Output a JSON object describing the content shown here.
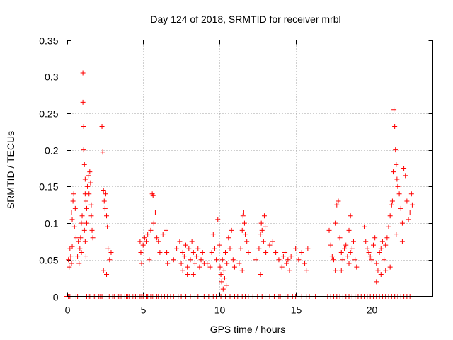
{
  "chart_data": {
    "type": "scatter",
    "title": "Day 124 of 2018, SRMTID for receiver mrbl",
    "xlabel": "GPS time / hours",
    "ylabel": "SRMTID / TECUs",
    "xlim": [
      0,
      24
    ],
    "ylim": [
      0,
      0.35
    ],
    "x_ticks": [
      "0",
      "5",
      "10",
      "15",
      "20"
    ],
    "x_tick_values": [
      0,
      5,
      10,
      15,
      20
    ],
    "y_ticks": [
      "0",
      "0.05",
      "0.1",
      "0.15",
      "0.2",
      "0.25",
      "0.3",
      "0.35"
    ],
    "y_tick_values": [
      0,
      0.05,
      0.1,
      0.15,
      0.2,
      0.25,
      0.3,
      0.35
    ],
    "grid": true,
    "marker": "+",
    "color": "#ff0000",
    "series": [
      {
        "name": "SRMTID",
        "points": [
          [
            0.1,
            0.05
          ],
          [
            0.15,
            0.04
          ],
          [
            0.2,
            0.065
          ],
          [
            0.25,
            0.055
          ],
          [
            0.3,
            0.045
          ],
          [
            0.35,
            0.068
          ],
          [
            0.3,
            0.115
          ],
          [
            0.35,
            0.105
          ],
          [
            0.4,
            0.13
          ],
          [
            0.45,
            0.14
          ],
          [
            0.5,
            0.095
          ],
          [
            0.55,
            0.12
          ],
          [
            0.6,
            0.08
          ],
          [
            0.7,
            0.055
          ],
          [
            0.75,
            0.075
          ],
          [
            0.8,
            0.045
          ],
          [
            0.85,
            0.065
          ],
          [
            0.9,
            0.08
          ],
          [
            0.95,
            0.1
          ],
          [
            1.0,
            0.11
          ],
          [
            1.05,
            0.305
          ],
          [
            1.05,
            0.265
          ],
          [
            1.1,
            0.232
          ],
          [
            1.1,
            0.2
          ],
          [
            1.15,
            0.18
          ],
          [
            1.2,
            0.16
          ],
          [
            1.2,
            0.14
          ],
          [
            1.25,
            0.13
          ],
          [
            1.3,
            0.12
          ],
          [
            1.3,
            0.1
          ],
          [
            1.35,
            0.15
          ],
          [
            1.4,
            0.165
          ],
          [
            1.45,
            0.14
          ],
          [
            1.5,
            0.17
          ],
          [
            1.55,
            0.155
          ],
          [
            1.6,
            0.125
          ],
          [
            1.6,
            0.11
          ],
          [
            1.65,
            0.09
          ],
          [
            1.7,
            0.08
          ],
          [
            1.15,
            0.09
          ],
          [
            1.2,
            0.075
          ],
          [
            1.25,
            0.055
          ],
          [
            0.95,
            0.06
          ],
          [
            2.3,
            0.232
          ],
          [
            2.35,
            0.197
          ],
          [
            2.4,
            0.145
          ],
          [
            2.45,
            0.13
          ],
          [
            2.5,
            0.12
          ],
          [
            2.55,
            0.14
          ],
          [
            2.6,
            0.11
          ],
          [
            2.65,
            0.095
          ],
          [
            2.4,
            0.035
          ],
          [
            2.6,
            0.03
          ],
          [
            2.8,
            0.05
          ],
          [
            2.9,
            0.06
          ],
          [
            2.7,
            0.065
          ],
          [
            4.8,
            0.075
          ],
          [
            4.85,
            0.06
          ],
          [
            4.9,
            0.045
          ],
          [
            5.0,
            0.07
          ],
          [
            5.1,
            0.08
          ],
          [
            5.2,
            0.075
          ],
          [
            5.3,
            0.085
          ],
          [
            5.4,
            0.05
          ],
          [
            5.5,
            0.09
          ],
          [
            5.6,
            0.14
          ],
          [
            5.65,
            0.138
          ],
          [
            5.7,
            0.1
          ],
          [
            5.8,
            0.115
          ],
          [
            5.9,
            0.08
          ],
          [
            6.0,
            0.075
          ],
          [
            6.1,
            0.06
          ],
          [
            6.3,
            0.085
          ],
          [
            6.5,
            0.09
          ],
          [
            6.55,
            0.06
          ],
          [
            6.6,
            0.045
          ],
          [
            7.0,
            0.05
          ],
          [
            7.2,
            0.065
          ],
          [
            7.4,
            0.075
          ],
          [
            7.5,
            0.045
          ],
          [
            7.6,
            0.06
          ],
          [
            7.7,
            0.055
          ],
          [
            7.8,
            0.07
          ],
          [
            7.9,
            0.04
          ],
          [
            8.0,
            0.065
          ],
          [
            8.1,
            0.05
          ],
          [
            8.2,
            0.075
          ],
          [
            8.3,
            0.06
          ],
          [
            8.4,
            0.045
          ],
          [
            8.5,
            0.055
          ],
          [
            8.6,
            0.065
          ],
          [
            8.7,
            0.04
          ],
          [
            8.8,
            0.05
          ],
          [
            8.9,
            0.06
          ],
          [
            9.0,
            0.045
          ],
          [
            7.6,
            0.035
          ],
          [
            7.9,
            0.03
          ],
          [
            8.3,
            0.03
          ],
          [
            9.2,
            0.045
          ],
          [
            9.4,
            0.04
          ],
          [
            9.5,
            0.06
          ],
          [
            9.6,
            0.085
          ],
          [
            9.7,
            0.065
          ],
          [
            9.8,
            0.05
          ],
          [
            9.9,
            0.105
          ],
          [
            10.0,
            0.07
          ],
          [
            10.05,
            0.04
          ],
          [
            10.1,
            0.03
          ],
          [
            10.15,
            0.02
          ],
          [
            10.2,
            0.05
          ],
          [
            10.3,
            0.035
          ],
          [
            10.35,
            0.025
          ],
          [
            10.4,
            0.06
          ],
          [
            10.5,
            0.045
          ],
          [
            10.6,
            0.08
          ],
          [
            10.7,
            0.065
          ],
          [
            10.8,
            0.09
          ],
          [
            10.9,
            0.05
          ],
          [
            11.0,
            0.04
          ],
          [
            10.25,
            0.01
          ],
          [
            10.45,
            0.015
          ],
          [
            11.3,
            0.045
          ],
          [
            11.4,
            0.065
          ],
          [
            11.5,
            0.09
          ],
          [
            11.55,
            0.11
          ],
          [
            11.6,
            0.115
          ],
          [
            11.65,
            0.1
          ],
          [
            11.7,
            0.085
          ],
          [
            11.8,
            0.075
          ],
          [
            11.9,
            0.06
          ],
          [
            11.5,
            0.035
          ],
          [
            12.4,
            0.05
          ],
          [
            12.6,
            0.065
          ],
          [
            12.7,
            0.085
          ],
          [
            12.75,
            0.1
          ],
          [
            12.8,
            0.09
          ],
          [
            12.9,
            0.075
          ],
          [
            12.95,
            0.11
          ],
          [
            13.0,
            0.095
          ],
          [
            13.05,
            0.06
          ],
          [
            12.7,
            0.03
          ],
          [
            13.3,
            0.07
          ],
          [
            13.5,
            0.075
          ],
          [
            13.7,
            0.06
          ],
          [
            13.9,
            0.05
          ],
          [
            14.1,
            0.04
          ],
          [
            14.2,
            0.055
          ],
          [
            14.3,
            0.06
          ],
          [
            14.4,
            0.045
          ],
          [
            14.5,
            0.05
          ],
          [
            14.6,
            0.035
          ],
          [
            14.7,
            0.055
          ],
          [
            15.0,
            0.065
          ],
          [
            15.2,
            0.05
          ],
          [
            15.4,
            0.06
          ],
          [
            15.6,
            0.045
          ],
          [
            15.8,
            0.065
          ],
          [
            15.7,
            0.035
          ],
          [
            17.2,
            0.09
          ],
          [
            17.3,
            0.07
          ],
          [
            17.4,
            0.055
          ],
          [
            17.5,
            0.05
          ],
          [
            17.6,
            0.1
          ],
          [
            17.7,
            0.125
          ],
          [
            17.8,
            0.13
          ],
          [
            17.9,
            0.08
          ],
          [
            18.0,
            0.06
          ],
          [
            18.1,
            0.05
          ],
          [
            18.2,
            0.065
          ],
          [
            18.3,
            0.07
          ],
          [
            18.4,
            0.055
          ],
          [
            18.5,
            0.045
          ],
          [
            18.6,
            0.06
          ],
          [
            18.7,
            0.065
          ],
          [
            18.8,
            0.075
          ],
          [
            18.9,
            0.05
          ],
          [
            19.0,
            0.04
          ],
          [
            18.5,
            0.09
          ],
          [
            18.6,
            0.11
          ],
          [
            17.6,
            0.035
          ],
          [
            18.0,
            0.035
          ],
          [
            19.5,
            0.095
          ],
          [
            19.6,
            0.075
          ],
          [
            19.7,
            0.065
          ],
          [
            19.8,
            0.06
          ],
          [
            19.9,
            0.055
          ],
          [
            20.0,
            0.05
          ],
          [
            20.1,
            0.07
          ],
          [
            20.2,
            0.08
          ],
          [
            20.3,
            0.045
          ],
          [
            20.4,
            0.035
          ],
          [
            20.5,
            0.06
          ],
          [
            20.6,
            0.065
          ],
          [
            20.7,
            0.075
          ],
          [
            20.8,
            0.05
          ],
          [
            20.9,
            0.07
          ],
          [
            21.0,
            0.08
          ],
          [
            21.1,
            0.095
          ],
          [
            21.2,
            0.11
          ],
          [
            21.3,
            0.125
          ],
          [
            21.35,
            0.13
          ],
          [
            21.4,
            0.17
          ],
          [
            21.45,
            0.255
          ],
          [
            21.5,
            0.232
          ],
          [
            21.55,
            0.2
          ],
          [
            21.6,
            0.18
          ],
          [
            21.65,
            0.16
          ],
          [
            21.7,
            0.15
          ],
          [
            21.8,
            0.14
          ],
          [
            21.9,
            0.12
          ],
          [
            22.0,
            0.1
          ],
          [
            22.1,
            0.175
          ],
          [
            22.2,
            0.165
          ],
          [
            22.3,
            0.13
          ],
          [
            22.4,
            0.105
          ],
          [
            22.5,
            0.115
          ],
          [
            22.6,
            0.14
          ],
          [
            22.65,
            0.125
          ],
          [
            20.3,
            0.02
          ],
          [
            20.6,
            0.03
          ],
          [
            20.9,
            0.035
          ],
          [
            21.2,
            0.04
          ],
          [
            21.6,
            0.085
          ],
          [
            22.0,
            0.075
          ]
        ]
      }
    ],
    "zero_band": [
      0.0,
      0.1,
      0.2,
      0.6,
      0.7,
      1.3,
      1.4,
      1.5,
      1.8,
      1.9,
      2.1,
      2.2,
      2.3,
      2.7,
      2.8,
      3.0,
      3.1,
      3.3,
      3.4,
      3.5,
      3.6,
      3.8,
      3.9,
      4.0,
      4.1,
      4.3,
      4.4,
      4.5,
      4.6,
      4.8,
      4.9,
      5.0,
      5.2,
      5.3,
      5.5,
      5.6,
      5.7,
      5.9,
      6.0,
      6.2,
      6.4,
      6.6,
      6.8,
      7.0,
      7.3,
      7.5,
      7.8,
      8.1,
      8.4,
      8.6,
      9.0,
      9.3,
      9.6,
      9.8,
      10.1,
      10.4,
      10.7,
      11.0,
      11.2,
      11.5,
      11.7,
      11.9,
      12.2,
      12.5,
      12.8,
      13.0,
      13.3,
      13.6,
      13.9,
      14.0,
      14.3,
      14.5,
      14.8,
      15.0,
      15.4,
      15.7,
      15.9,
      16.3,
      17.1,
      17.3,
      17.5,
      17.7,
      17.9,
      18.1,
      18.3,
      18.5,
      18.7,
      18.9,
      19.1,
      19.3,
      19.5,
      19.7,
      19.9,
      20.1,
      20.3,
      20.5,
      20.7,
      20.9,
      21.1,
      21.3,
      21.5,
      21.7,
      21.9,
      22.1,
      22.3,
      22.5,
      22.7
    ]
  }
}
